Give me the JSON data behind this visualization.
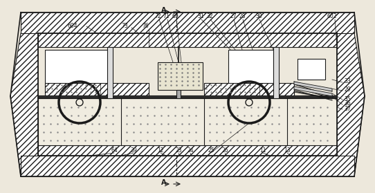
{
  "bg_color": "#ede8dc",
  "line_color": "#1a1a1a",
  "fig_w": 5.42,
  "fig_h": 2.79,
  "dpi": 100
}
